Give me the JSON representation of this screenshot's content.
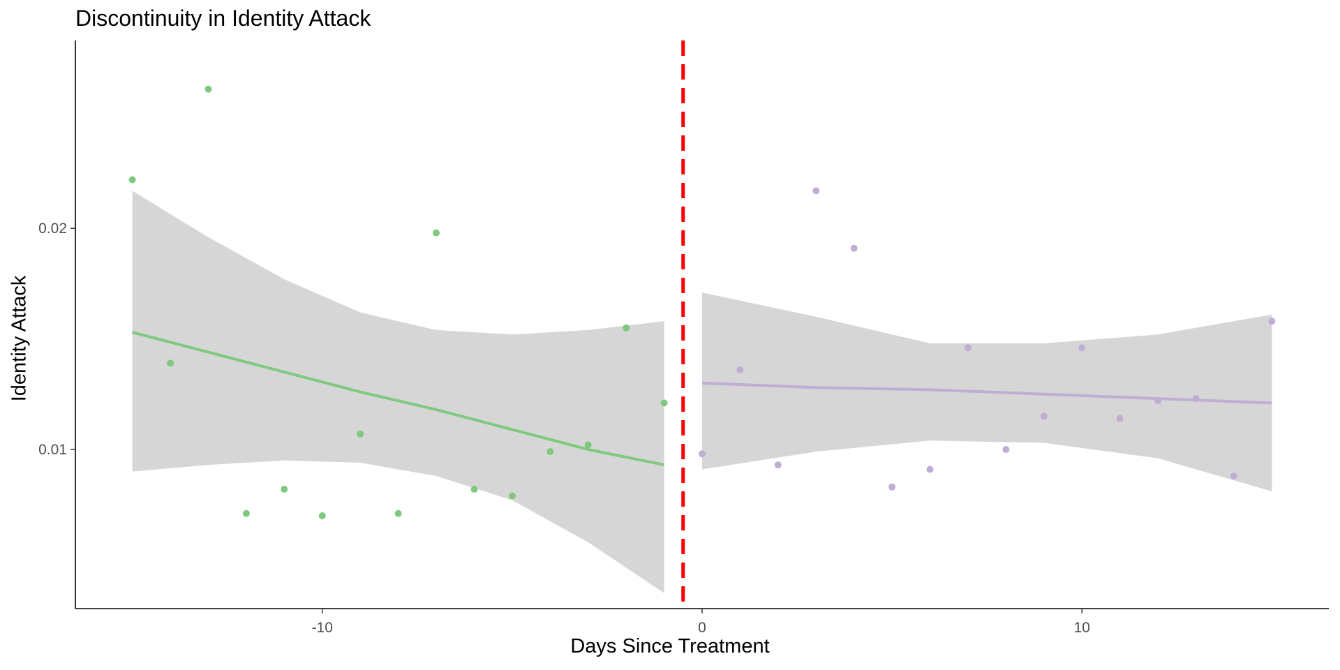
{
  "chart_data": {
    "type": "scatter",
    "title": "Discontinuity in Identity Attack",
    "xlabel": "Days Since Treatment",
    "ylabel": "Identity Attack",
    "xlim": [
      -16.5,
      16.5
    ],
    "ylim": [
      0.0028,
      0.0285
    ],
    "x_ticks": [
      -10,
      0,
      10
    ],
    "x_tick_labels": [
      "-10",
      "0",
      "10"
    ],
    "y_ticks": [
      0.01,
      0.02
    ],
    "y_tick_labels": [
      "0.01",
      "0.02"
    ],
    "grid": false,
    "cutoff": {
      "x": -0.5,
      "color": "#ff0000",
      "style": "dashed"
    },
    "ribbon_color": "#d6d6d6",
    "series": [
      {
        "color": "#7fc97f",
        "x": [
          -15,
          -14,
          -13,
          -12,
          -11,
          -10,
          -9,
          -8,
          -7,
          -6,
          -5,
          -4,
          -3,
          -2,
          -1
        ],
        "y": [
          0.0222,
          0.0139,
          0.0263,
          0.0071,
          0.0082,
          0.007,
          0.0107,
          0.0071,
          0.0198,
          0.0082,
          0.0079,
          0.0099,
          0.0102,
          0.0155,
          0.0121
        ],
        "fit": {
          "x": [
            -15,
            -13,
            -11,
            -9,
            -7,
            -5,
            -3,
            -1
          ],
          "y": [
            0.0153,
            0.0144,
            0.0135,
            0.0126,
            0.0118,
            0.0109,
            0.01,
            0.0093
          ],
          "lower": [
            0.009,
            0.0093,
            0.0095,
            0.0094,
            0.0088,
            0.0077,
            0.0058,
            0.0035
          ],
          "upper": [
            0.0217,
            0.0196,
            0.0177,
            0.0162,
            0.0154,
            0.0152,
            0.0154,
            0.0158
          ]
        }
      },
      {
        "color": "#beaed4",
        "x": [
          0,
          1,
          2,
          3,
          4,
          5,
          6,
          7,
          8,
          9,
          10,
          11,
          12,
          13,
          14,
          15
        ],
        "y": [
          0.0098,
          0.0136,
          0.0093,
          0.0217,
          0.0191,
          0.0083,
          0.0091,
          0.0146,
          0.01,
          0.0115,
          0.0146,
          0.0114,
          0.0122,
          0.0123,
          0.0088,
          0.0158
        ],
        "fit": {
          "x": [
            0,
            3,
            6,
            9,
            12,
            15
          ],
          "y": [
            0.013,
            0.0128,
            0.0127,
            0.0125,
            0.0123,
            0.0121
          ],
          "lower": [
            0.0091,
            0.0099,
            0.0104,
            0.0103,
            0.0096,
            0.0081
          ],
          "upper": [
            0.0171,
            0.016,
            0.0148,
            0.0148,
            0.0152,
            0.0161
          ]
        }
      }
    ]
  }
}
